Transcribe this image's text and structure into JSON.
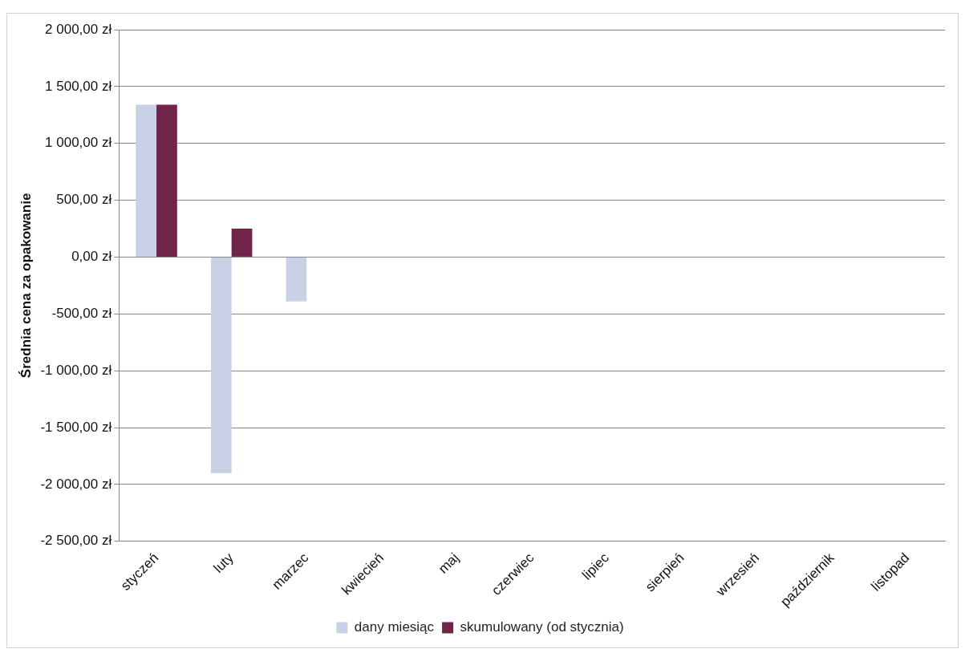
{
  "chart_data": {
    "type": "bar",
    "ylabel": "Średnia cena za opakowanie",
    "categories": [
      "styczeń",
      "luty",
      "marzec",
      "kwiecień",
      "maj",
      "czerwiec",
      "lipiec",
      "sierpień",
      "wrzesień",
      "październik",
      "listopad"
    ],
    "series": [
      {
        "name": "dany miesiąc",
        "color": "#c9d1e6",
        "values": [
          1340,
          -1900,
          -390,
          null,
          null,
          null,
          null,
          null,
          null,
          null,
          null
        ]
      },
      {
        "name": "skumulowany (od stycznia)",
        "color": "#70244a",
        "values": [
          1340,
          250,
          null,
          null,
          null,
          null,
          null,
          null,
          null,
          null,
          null
        ]
      }
    ],
    "ylim": [
      -2500,
      2000
    ],
    "yticks": [
      {
        "value": -2500,
        "label": "-2 500,00 zł"
      },
      {
        "value": -2000,
        "label": "-2 000,00 zł"
      },
      {
        "value": -1500,
        "label": "-1 500,00 zł"
      },
      {
        "value": -1000,
        "label": "-1 000,00 zł"
      },
      {
        "value": -500,
        "label": "-500,00 zł"
      },
      {
        "value": 0,
        "label": "0,00 zł"
      },
      {
        "value": 500,
        "label": "500,00 zł"
      },
      {
        "value": 1000,
        "label": "1 000,00 zł"
      },
      {
        "value": 1500,
        "label": "1 500,00 zł"
      },
      {
        "value": 2000,
        "label": "2 000,00 zł"
      }
    ],
    "grid": "y",
    "legend": "bottom"
  }
}
